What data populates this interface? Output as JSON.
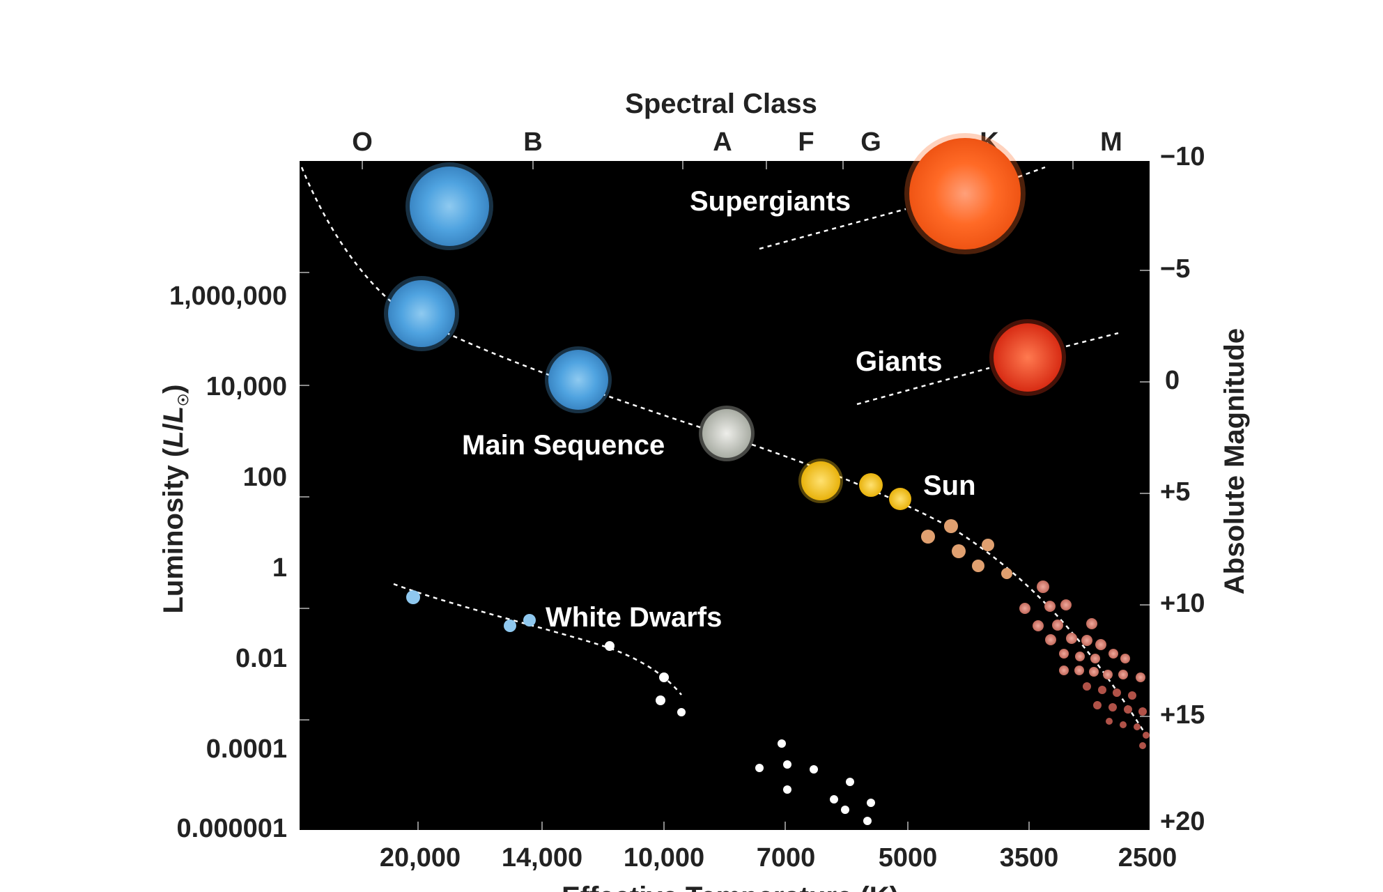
{
  "diagram": {
    "top_axis_title": "Spectral Class",
    "spectral_classes": [
      "O",
      "B",
      "A",
      "F",
      "G",
      "K",
      "M"
    ],
    "left_axis_title_prefix": "Luminosity (",
    "left_axis_title_symbol": "L",
    "left_axis_title_divider": "/",
    "left_axis_title_sun_symbol": "L",
    "left_axis_title_sun_subscript": "☉",
    "left_axis_title_suffix": ")",
    "luminosity_ticks": [
      "1,000,000",
      "10,000",
      "100",
      "1",
      "0.01",
      "0.0001",
      "0.000001"
    ],
    "right_axis_title": "Absolute Magnitude",
    "magnitude_ticks": [
      "−10",
      "−5",
      "0",
      "+5",
      "+10",
      "+15",
      "+20"
    ],
    "bottom_axis_title": "Effective Temperature (K)",
    "temperature_ticks": [
      "20,000",
      "14,000",
      "10,000",
      "7000",
      "5000",
      "3500",
      "2500"
    ],
    "regions": {
      "supergiants": "Supergiants",
      "giants": "Giants",
      "main_sequence": "Main Sequence",
      "sun": "Sun",
      "white_dwarfs": "White Dwarfs"
    },
    "colors": {
      "plot_background": "#000000",
      "blue_star": "#4fa3e0",
      "white_star": "#c8cbc4",
      "yellow_star": "#f3c21e",
      "orange_star": "#ff6a26",
      "red_giant": "#ee3a1c",
      "red_dwarf": "#e0837a",
      "white_dwarf": "#ffffff"
    }
  }
}
